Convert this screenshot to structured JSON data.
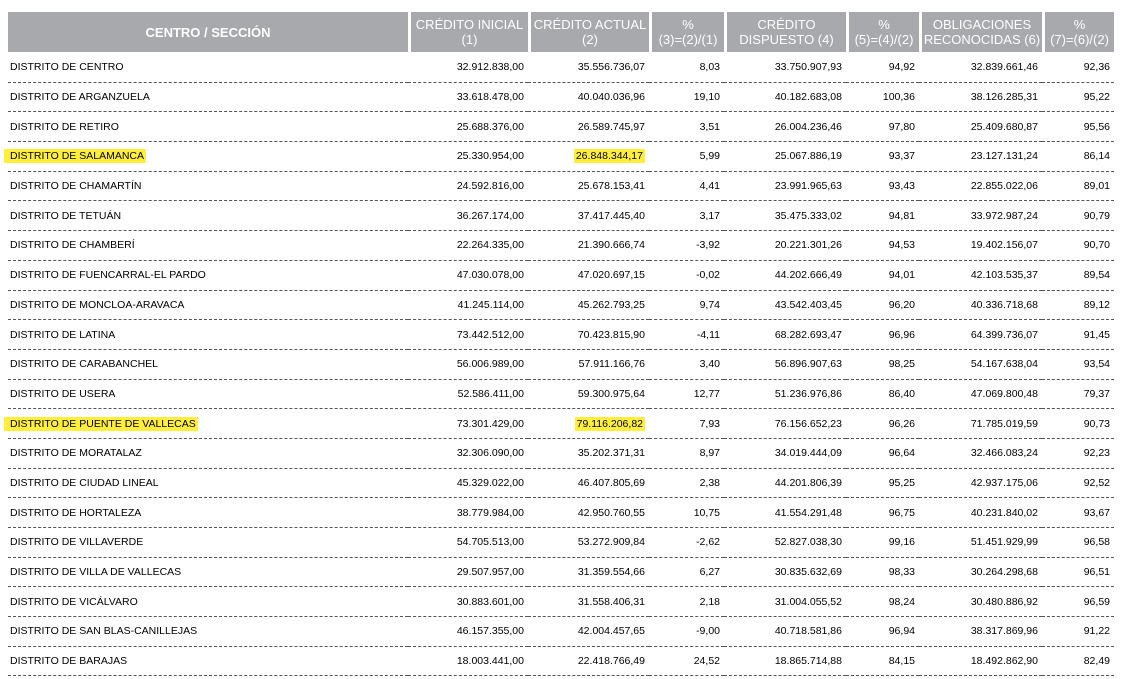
{
  "header": {
    "centro": "CENTRO / SECCIÓN",
    "cols": [
      {
        "l1": "CRÉDITO INICIAL",
        "l2": "(1)"
      },
      {
        "l1": "CRÉDITO ACTUAL",
        "l2": "(2)"
      },
      {
        "l1": "%",
        "l2": "(3)=(2)/(1)"
      },
      {
        "l1": "CRÉDITO",
        "l2": "DISPUESTO (4)"
      },
      {
        "l1": "%",
        "l2": "(5)=(4)/(2)"
      },
      {
        "l1": "OBLIGACIONES",
        "l2": "RECONOCIDAS (6)"
      },
      {
        "l1": "%",
        "l2": "(7)=(6)/(2)"
      }
    ]
  },
  "highlight_color": "#ffef3a",
  "rows": [
    {
      "name": "DISTRITO DE CENTRO",
      "v": [
        "32.912.838,00",
        "35.556.736,07",
        "8,03",
        "33.750.907,93",
        "94,92",
        "32.839.661,46",
        "92,36"
      ],
      "hl": false
    },
    {
      "name": "DISTRITO DE ARGANZUELA",
      "v": [
        "33.618.478,00",
        "40.040.036,96",
        "19,10",
        "40.182.683,08",
        "100,36",
        "38.126.285,31",
        "95,22"
      ],
      "hl": false
    },
    {
      "name": "DISTRITO DE RETIRO",
      "v": [
        "25.688.376,00",
        "26.589.745,97",
        "3,51",
        "26.004.236,46",
        "97,80",
        "25.409.680,87",
        "95,56"
      ],
      "hl": false
    },
    {
      "name": "DISTRITO DE SALAMANCA",
      "v": [
        "25.330.954,00",
        "26.848.344,17",
        "5,99",
        "25.067.886,19",
        "93,37",
        "23.127.131,24",
        "86,14"
      ],
      "hl": true
    },
    {
      "name": "DISTRITO DE CHAMARTÍN",
      "v": [
        "24.592.816,00",
        "25.678.153,41",
        "4,41",
        "23.991.965,63",
        "93,43",
        "22.855.022,06",
        "89,01"
      ],
      "hl": false
    },
    {
      "name": "DISTRITO DE TETUÁN",
      "v": [
        "36.267.174,00",
        "37.417.445,40",
        "3,17",
        "35.475.333,02",
        "94,81",
        "33.972.987,24",
        "90,79"
      ],
      "hl": false
    },
    {
      "name": "DISTRITO DE CHAMBERÍ",
      "v": [
        "22.264.335,00",
        "21.390.666,74",
        "-3,92",
        "20.221.301,26",
        "94,53",
        "19.402.156,07",
        "90,70"
      ],
      "hl": false
    },
    {
      "name": "DISTRITO DE FUENCARRAL-EL PARDO",
      "v": [
        "47.030.078,00",
        "47.020.697,15",
        "-0,02",
        "44.202.666,49",
        "94,01",
        "42.103.535,37",
        "89,54"
      ],
      "hl": false
    },
    {
      "name": "DISTRITO DE MONCLOA-ARAVACA",
      "v": [
        "41.245.114,00",
        "45.262.793,25",
        "9,74",
        "43.542.403,45",
        "96,20",
        "40.336.718,68",
        "89,12"
      ],
      "hl": false
    },
    {
      "name": "DISTRITO DE LATINA",
      "v": [
        "73.442.512,00",
        "70.423.815,90",
        "-4,11",
        "68.282.693,47",
        "96,96",
        "64.399.736,07",
        "91,45"
      ],
      "hl": false
    },
    {
      "name": "DISTRITO DE CARABANCHEL",
      "v": [
        "56.006.989,00",
        "57.911.166,76",
        "3,40",
        "56.896.907,63",
        "98,25",
        "54.167.638,04",
        "93,54"
      ],
      "hl": false
    },
    {
      "name": "DISTRITO DE USERA",
      "v": [
        "52.586.411,00",
        "59.300.975,64",
        "12,77",
        "51.236.976,86",
        "86,40",
        "47.069.800,48",
        "79,37"
      ],
      "hl": false
    },
    {
      "name": "DISTRITO DE PUENTE DE VALLECAS",
      "v": [
        "73.301.429,00",
        "79.116.206,82",
        "7,93",
        "76.156.652,23",
        "96,26",
        "71.785.019,59",
        "90,73"
      ],
      "hl": true
    },
    {
      "name": "DISTRITO DE MORATALAZ",
      "v": [
        "32.306.090,00",
        "35.202.371,31",
        "8,97",
        "34.019.444,09",
        "96,64",
        "32.466.083,24",
        "92,23"
      ],
      "hl": false
    },
    {
      "name": "DISTRITO DE CIUDAD LINEAL",
      "v": [
        "45.329.022,00",
        "46.407.805,69",
        "2,38",
        "44.201.806,39",
        "95,25",
        "42.937.175,06",
        "92,52"
      ],
      "hl": false
    },
    {
      "name": "DISTRITO DE HORTALEZA",
      "v": [
        "38.779.984,00",
        "42.950.760,55",
        "10,75",
        "41.554.291,48",
        "96,75",
        "40.231.840,02",
        "93,67"
      ],
      "hl": false
    },
    {
      "name": "DISTRITO DE VILLAVERDE",
      "v": [
        "54.705.513,00",
        "53.272.909,84",
        "-2,62",
        "52.827.038,30",
        "99,16",
        "51.451.929,99",
        "96,58"
      ],
      "hl": false
    },
    {
      "name": "DISTRITO DE VILLA DE VALLECAS",
      "v": [
        "29.507.957,00",
        "31.359.554,66",
        "6,27",
        "30.835.632,69",
        "98,33",
        "30.264.298,68",
        "96,51"
      ],
      "hl": false
    },
    {
      "name": "DISTRITO DE VICÁLVARO",
      "v": [
        "30.883.601,00",
        "31.558.406,31",
        "2,18",
        "31.004.055,52",
        "98,24",
        "30.480.886,92",
        "96,59"
      ],
      "hl": false
    },
    {
      "name": "DISTRITO DE SAN BLAS-CANILLEJAS",
      "v": [
        "46.157.355,00",
        "42.004.457,65",
        "-9,00",
        "40.718.581,86",
        "96,94",
        "38.317.869,96",
        "91,22"
      ],
      "hl": false
    },
    {
      "name": "DISTRITO DE BARAJAS",
      "v": [
        "18.003.441,00",
        "22.418.766,49",
        "24,52",
        "18.865.714,88",
        "84,15",
        "18.492.862,90",
        "82,49"
      ],
      "hl": false
    }
  ]
}
